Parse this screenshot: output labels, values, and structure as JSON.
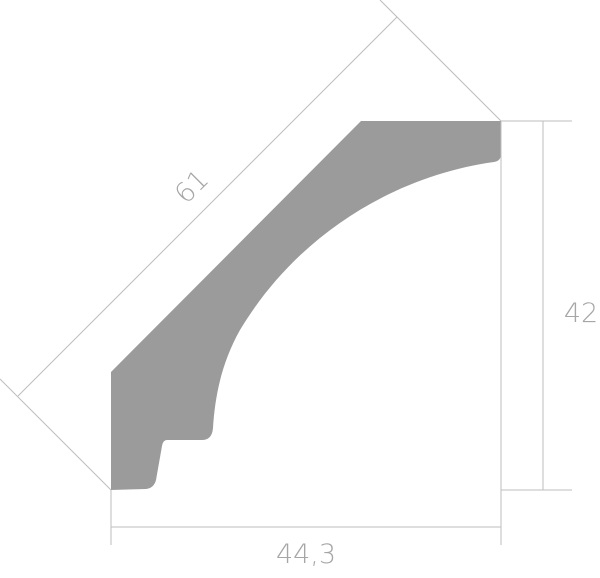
{
  "dimensions": {
    "diagonal": "61",
    "height": "42",
    "width": "44,3"
  },
  "colors": {
    "profile_fill": "#9b9b9b",
    "dimension_line": "#bdbdbd",
    "label": "#a6a6a6"
  }
}
